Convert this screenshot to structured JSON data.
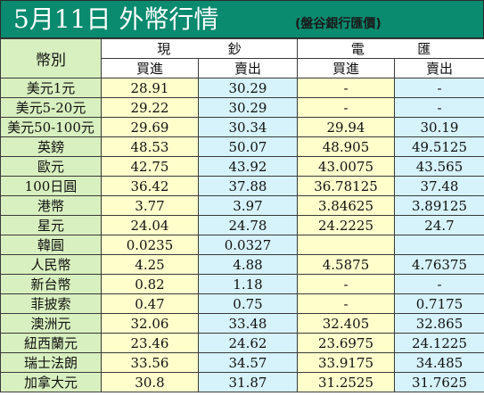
{
  "title": {
    "main": "5月11日 外幣行情",
    "sub": "(盤谷銀行匯價)"
  },
  "header": {
    "corner": "幣別",
    "cash_group": [
      "現",
      "鈔"
    ],
    "wire_group": [
      "電",
      "匯"
    ],
    "cash_buy": "買進",
    "cash_sell": "賣出",
    "wire_buy": "買進",
    "wire_sell": "賣出"
  },
  "rows": [
    {
      "name": "美元1元",
      "cash_buy": "28.91",
      "cash_sell": "30.29",
      "wire_buy": "-",
      "wire_sell": "-"
    },
    {
      "name": "美元5-20元",
      "cash_buy": "29.22",
      "cash_sell": "30.29",
      "wire_buy": "-",
      "wire_sell": "-"
    },
    {
      "name": "美元50-100元",
      "cash_buy": "29.69",
      "cash_sell": "30.34",
      "wire_buy": "29.94",
      "wire_sell": "30.19"
    },
    {
      "name": "英鎊",
      "cash_buy": "48.53",
      "cash_sell": "50.07",
      "wire_buy": "48.905",
      "wire_sell": "49.5125"
    },
    {
      "name": "歐元",
      "cash_buy": "42.75",
      "cash_sell": "43.92",
      "wire_buy": "43.0075",
      "wire_sell": "43.565"
    },
    {
      "name": "100日圓",
      "cash_buy": "36.42",
      "cash_sell": "37.88",
      "wire_buy": "36.78125",
      "wire_sell": "37.48"
    },
    {
      "name": "港幣",
      "cash_buy": "3.77",
      "cash_sell": "3.97",
      "wire_buy": "3.84625",
      "wire_sell": "3.89125"
    },
    {
      "name": "星元",
      "cash_buy": "24.04",
      "cash_sell": "24.78",
      "wire_buy": "24.2225",
      "wire_sell": "24.7"
    },
    {
      "name": "韓圓",
      "cash_buy": "0.0235",
      "cash_sell": "0.0327",
      "wire_buy": "",
      "wire_sell": ""
    },
    {
      "name": "人民幣",
      "cash_buy": "4.25",
      "cash_sell": "4.88",
      "wire_buy": "4.5875",
      "wire_sell": "4.76375"
    },
    {
      "name": "新台幣",
      "cash_buy": "0.82",
      "cash_sell": "1.18",
      "wire_buy": "-",
      "wire_sell": "-"
    },
    {
      "name": "菲披索",
      "cash_buy": "0.47",
      "cash_sell": "0.75",
      "wire_buy": "-",
      "wire_sell": "0.7175"
    },
    {
      "name": "澳洲元",
      "cash_buy": "32.06",
      "cash_sell": "33.48",
      "wire_buy": "32.405",
      "wire_sell": "32.865"
    },
    {
      "name": "紐西蘭元",
      "cash_buy": "23.46",
      "cash_sell": "24.62",
      "wire_buy": "23.6975",
      "wire_sell": "24.1225"
    },
    {
      "name": "瑞士法朗",
      "cash_buy": "33.56",
      "cash_sell": "34.57",
      "wire_buy": "33.9175",
      "wire_sell": "34.485"
    },
    {
      "name": "加拿大元",
      "cash_buy": "30.8",
      "cash_sell": "31.87",
      "wire_buy": "31.2525",
      "wire_sell": "31.7625"
    }
  ],
  "colors": {
    "title_bg": "#0a8a6e",
    "name_col_bg": "#d8f0bf",
    "buy_col_bg": "#ffffcc",
    "sell_col_bg": "#d6f2fa"
  }
}
